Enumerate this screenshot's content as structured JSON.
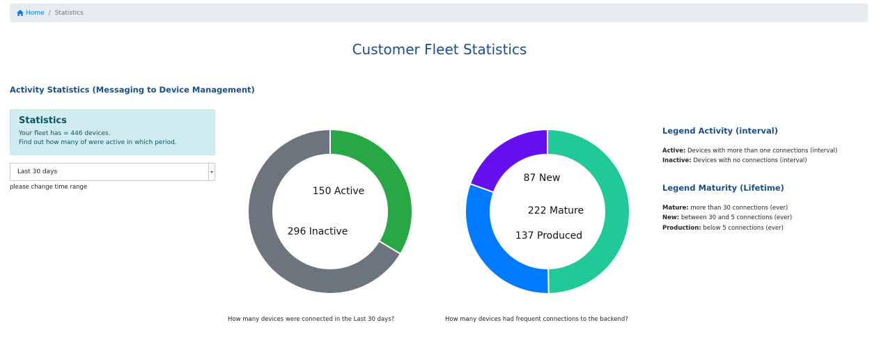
{
  "breadcrumb": {
    "home": "Home",
    "current": "Statistics"
  },
  "page_title": "Customer Fleet Statistics",
  "activity_section_title": "Activity Statistics (Messaging to Device Management)",
  "stats_box": {
    "heading": "Statistics",
    "line1": "Your fleet has = 446 devices.",
    "line2": "Find out how many of were active in which period."
  },
  "time_range": {
    "selected": "Last 30 days",
    "hint": "please change time range"
  },
  "chart_data": [
    {
      "type": "pie",
      "categories": [
        "Active",
        "Inactive"
      ],
      "values": [
        150,
        296
      ],
      "colors": [
        "#28a745",
        "#6c757d"
      ],
      "labels": [
        "150 Active",
        "296 Inactive"
      ],
      "caption": "How many devices were connected in the Last 30 days?"
    },
    {
      "type": "pie",
      "categories": [
        "Mature",
        "Produced",
        "New"
      ],
      "values": [
        222,
        137,
        87
      ],
      "colors": [
        "#20c997",
        "#007bff",
        "#6610f2"
      ],
      "labels": [
        "222 Mature",
        "137 Produced",
        "87 New"
      ],
      "caption": "How many devices had frequent connections to the backend?"
    }
  ],
  "legend_activity": {
    "title": "Legend Activity (interval)",
    "items": [
      {
        "term": "Active:",
        "desc": "Devices with more than one connections (interval)"
      },
      {
        "term": "Inactive:",
        "desc": "Devices with no connections (interval)"
      }
    ]
  },
  "legend_maturity": {
    "title": "Legend Maturity (Lifetime)",
    "items": [
      {
        "term": "Mature:",
        "desc": "more than 30 connections (ever)"
      },
      {
        "term": "New:",
        "desc": "between 30 and 5 connections (ever)"
      },
      {
        "term": "Production:",
        "desc": "below 5 connections (ever)"
      }
    ]
  }
}
